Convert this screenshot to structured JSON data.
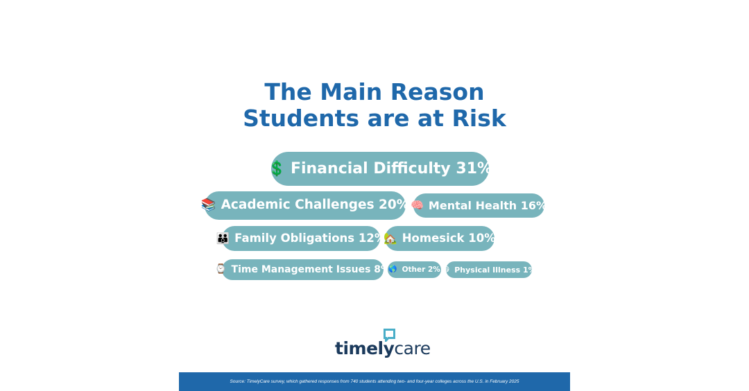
{
  "title": {
    "line1": "The Main Reason",
    "line2": "Students are at Risk"
  },
  "chart_data": {
    "type": "bubble-pills",
    "title": "The Main Reason Students are at Risk",
    "unit": "%",
    "items": [
      {
        "label": "Financial Difficulty",
        "value": 31,
        "icon": "dollar-icon",
        "glyph": "💲"
      },
      {
        "label": "Academic Challenges",
        "value": 20,
        "icon": "books-icon",
        "glyph": "📚"
      },
      {
        "label": "Mental Health",
        "value": 16,
        "icon": "brain-icon",
        "glyph": "🧠"
      },
      {
        "label": "Family Obligations",
        "value": 12,
        "icon": "family-icon",
        "glyph": "👪"
      },
      {
        "label": "Homesick",
        "value": 10,
        "icon": "house-icon",
        "glyph": "🏡"
      },
      {
        "label": "Time Management Issues",
        "value": 8,
        "icon": "watch-icon",
        "glyph": "⌚"
      },
      {
        "label": "Other",
        "value": 2,
        "icon": "globe-icon",
        "glyph": "🌎"
      },
      {
        "label": "Physical Illness",
        "value": 1,
        "icon": "sick-face-icon",
        "glyph": "😷"
      }
    ]
  },
  "logo": {
    "text_bold": "timely",
    "text_regular": "care"
  },
  "footer": {
    "source": "Source: TimelyCare survey, which gathered responses from 740 students attending two- and four-year colleges across the U.S. in February 2025"
  },
  "colors": {
    "title": "#1f68aa",
    "pill": "#78b4bc",
    "footer_bg": "#1f68aa",
    "logo_text": "#1b3a5c",
    "logo_mark": "#4aaec8"
  }
}
